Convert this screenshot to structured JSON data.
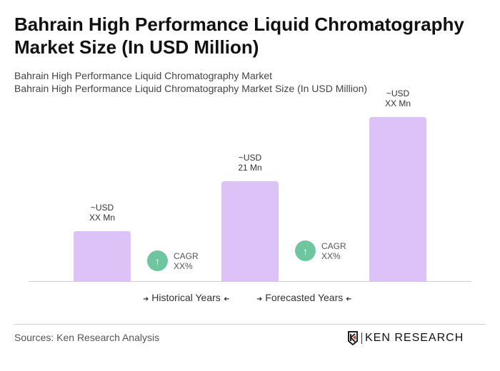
{
  "title": "Bahrain High Performance Liquid Chromatography Market Size (In USD Million)",
  "subtitle1": "Bahrain High Performance Liquid Chromatography Market",
  "subtitle2": "Bahrain High Performance Liquid Chromatography Market Size (In USD Million)",
  "chart_data": {
    "type": "bar",
    "values": [
      10.5,
      21,
      34.5
    ],
    "labels": [
      [
        "~USD",
        "XX Mn"
      ],
      [
        "~USD",
        "21 Mn"
      ],
      [
        "~USD",
        "XX Mn"
      ]
    ],
    "bar_color": "#dcc2f6",
    "cagr": [
      {
        "label": "CAGR",
        "value": "XX%"
      },
      {
        "label": "CAGR",
        "value": "XX%"
      }
    ],
    "legend": [
      "Historical Years",
      "Forecasted Years"
    ],
    "grid": false
  },
  "cagr_color": "#6ec6a0",
  "legend_arrow_in": "➜",
  "legend_arrow_out": "➜",
  "sources": "Sources: Ken Research Analysis",
  "logo_text": "KEN RESEARCH"
}
